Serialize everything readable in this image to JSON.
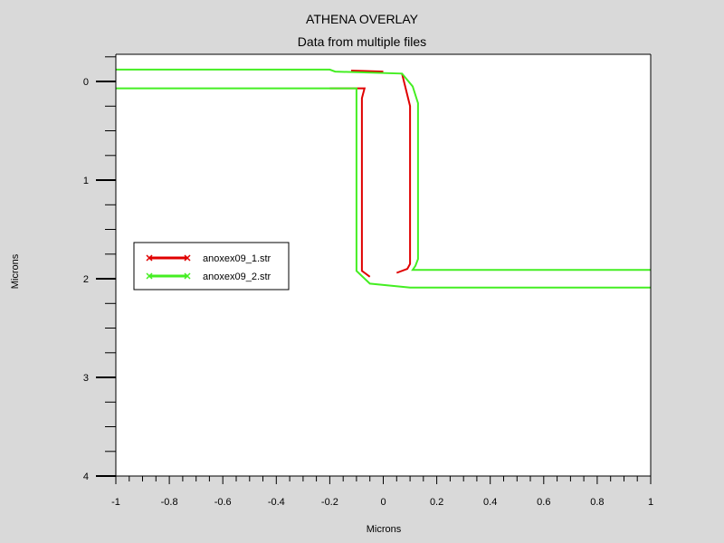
{
  "chart_data": {
    "type": "line",
    "title": "ATHENA OVERLAY",
    "subtitle": "Data from multiple files",
    "xlabel": "Microns",
    "ylabel": "Microns",
    "xlim": [
      -1,
      1
    ],
    "ylim": [
      4,
      -0.3
    ],
    "y_inverted": true,
    "grid": false,
    "legend_position": "left",
    "xticks": [
      {
        "value": -1,
        "label": "-1"
      },
      {
        "value": -0.8,
        "label": "-0.8"
      },
      {
        "value": -0.6,
        "label": "-0.6"
      },
      {
        "value": -0.4,
        "label": "-0.4"
      },
      {
        "value": -0.2,
        "label": "-0.2"
      },
      {
        "value": 0,
        "label": "0"
      },
      {
        "value": 0.2,
        "label": "0.2"
      },
      {
        "value": 0.4,
        "label": "0.4"
      },
      {
        "value": 0.6,
        "label": "0.6"
      },
      {
        "value": 0.8,
        "label": "0.8"
      },
      {
        "value": 1,
        "label": "1"
      }
    ],
    "yticks": [
      {
        "value": 0,
        "label": "0"
      },
      {
        "value": 1,
        "label": "1"
      },
      {
        "value": 2,
        "label": "2"
      },
      {
        "value": 3,
        "label": "3"
      },
      {
        "value": 4,
        "label": "4"
      }
    ],
    "series": [
      {
        "name": "anoxex09_1.str",
        "color": "#e00000",
        "paths": [
          [
            [
              -0.2,
              0.07
            ],
            [
              -0.07,
              0.07
            ],
            [
              -0.08,
              0.17
            ],
            [
              -0.08,
              1.92
            ],
            [
              -0.05,
              1.98
            ]
          ],
          [
            [
              -0.12,
              -0.11
            ],
            [
              0.0,
              -0.1
            ]
          ],
          [
            [
              0.07,
              -0.08
            ],
            [
              0.1,
              0.25
            ],
            [
              0.1,
              1.85
            ],
            [
              0.09,
              1.9
            ],
            [
              0.05,
              1.94
            ]
          ]
        ]
      },
      {
        "name": "anoxex09_2.str",
        "color": "#44ee22",
        "paths": [
          [
            [
              -1,
              -0.12
            ],
            [
              -0.2,
              -0.12
            ],
            [
              -0.18,
              -0.1
            ],
            [
              0.07,
              -0.08
            ],
            [
              0.11,
              0.05
            ],
            [
              0.13,
              0.22
            ],
            [
              0.13,
              1.8
            ],
            [
              0.12,
              1.87
            ],
            [
              0.11,
              1.91
            ],
            [
              0.2,
              1.91
            ],
            [
              1,
              1.91
            ]
          ],
          [
            [
              -1,
              0.07
            ],
            [
              -0.1,
              0.07
            ],
            [
              -0.1,
              1.92
            ],
            [
              -0.05,
              2.05
            ],
            [
              0.1,
              2.09
            ],
            [
              1,
              2.09
            ]
          ]
        ]
      }
    ]
  }
}
